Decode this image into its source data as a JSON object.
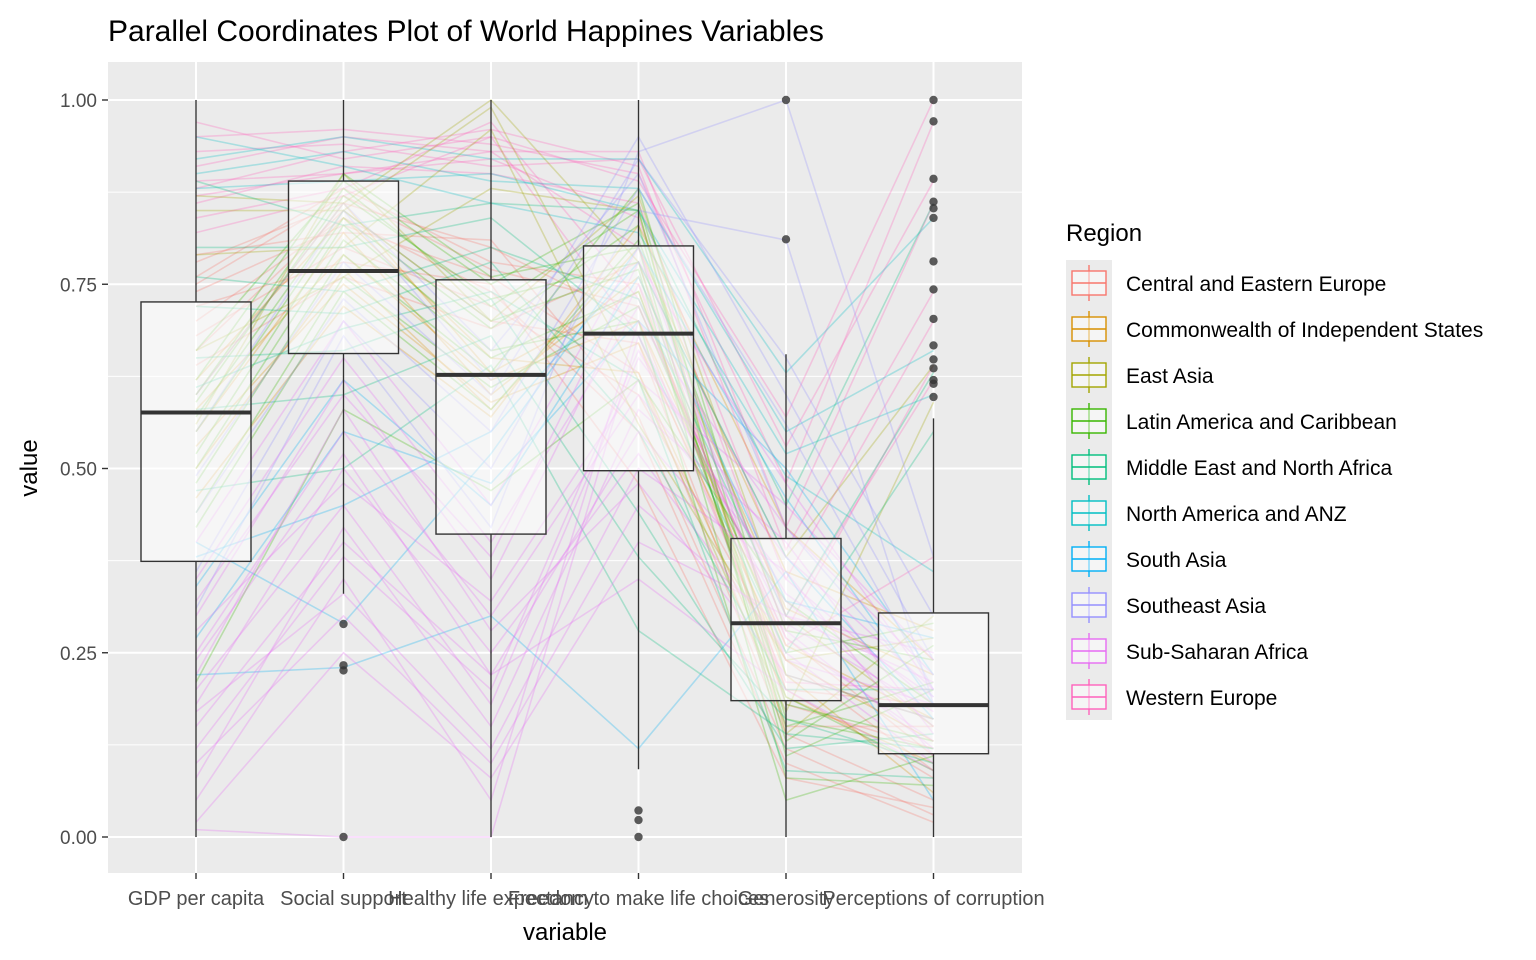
{
  "chart_data": {
    "type": "parallel-coordinates-boxplot",
    "title": "Parallel Coordinates Plot of World Happines Variables",
    "xlabel": "variable",
    "ylabel": "value",
    "ylim": [
      -0.05,
      1.05
    ],
    "y_ticks": [
      {
        "value": 0.0,
        "label": "0.00"
      },
      {
        "value": 0.25,
        "label": "0.25"
      },
      {
        "value": 0.5,
        "label": "0.50"
      },
      {
        "value": 0.75,
        "label": "0.75"
      },
      {
        "value": 1.0,
        "label": "1.00"
      }
    ],
    "categories": [
      "GDP per capita",
      "Social support",
      "Healthy life expectancy",
      "Freedom to make life choices",
      "Generosity",
      "Perceptions of corruption"
    ],
    "grid": true,
    "background": "#ebebeb",
    "boxplots": [
      {
        "variable": "GDP per capita",
        "min": 0.0,
        "q1": 0.374,
        "median": 0.576,
        "q3": 0.726,
        "max": 1.0,
        "outliers": []
      },
      {
        "variable": "Social support",
        "min": 0.33,
        "q1": 0.656,
        "median": 0.768,
        "q3": 0.89,
        "max": 1.0,
        "outliers": [
          0.0,
          0.226,
          0.233,
          0.289
        ]
      },
      {
        "variable": "Healthy life expectancy",
        "min": 0.0,
        "q1": 0.411,
        "median": 0.627,
        "q3": 0.756,
        "max": 1.0,
        "outliers": []
      },
      {
        "variable": "Freedom to make life choices",
        "min": 0.092,
        "q1": 0.497,
        "median": 0.683,
        "q3": 0.802,
        "max": 1.0,
        "outliers": [
          0.0,
          0.023,
          0.036
        ]
      },
      {
        "variable": "Generosity",
        "min": 0.0,
        "q1": 0.185,
        "median": 0.29,
        "q3": 0.405,
        "max": 0.655,
        "outliers": [
          0.811,
          1.0
        ]
      },
      {
        "variable": "Perceptions of corruption",
        "min": 0.0,
        "q1": 0.113,
        "median": 0.179,
        "q3": 0.304,
        "max": 0.568,
        "outliers": [
          0.597,
          0.615,
          0.62,
          0.636,
          0.648,
          0.667,
          0.703,
          0.743,
          0.781,
          0.84,
          0.853,
          0.862,
          0.893,
          0.971,
          1.0
        ]
      }
    ],
    "legend": {
      "title": "Region",
      "position": "right",
      "items": [
        {
          "name": "Central and Eastern Europe",
          "color": "#F8766D"
        },
        {
          "name": "Commonwealth of Independent States",
          "color": "#D89000"
        },
        {
          "name": "East Asia",
          "color": "#A3A500"
        },
        {
          "name": "Latin America and Caribbean",
          "color": "#39B600"
        },
        {
          "name": "Middle East and North Africa",
          "color": "#00BF7D"
        },
        {
          "name": "North America and ANZ",
          "color": "#00BFC4"
        },
        {
          "name": "South Asia",
          "color": "#00B0F6"
        },
        {
          "name": "Southeast Asia",
          "color": "#9590FF"
        },
        {
          "name": "Sub-Saharan Africa",
          "color": "#E76BF3"
        },
        {
          "name": "Western Europe",
          "color": "#FF62BC"
        }
      ]
    },
    "series": [
      {
        "name": "Western Europe",
        "values": [
          0.91,
          0.95,
          0.93,
          0.93,
          0.42,
          0.86
        ]
      },
      {
        "name": "Western Europe",
        "values": [
          0.93,
          0.94,
          0.91,
          0.92,
          0.53,
          0.89
        ]
      },
      {
        "name": "Western Europe",
        "values": [
          0.95,
          0.96,
          0.94,
          0.9,
          0.48,
          0.97
        ]
      },
      {
        "name": "Western Europe",
        "values": [
          0.88,
          0.93,
          0.96,
          0.91,
          0.39,
          0.74
        ]
      },
      {
        "name": "Western Europe",
        "values": [
          0.97,
          0.92,
          0.95,
          0.89,
          0.57,
          1.0
        ]
      },
      {
        "name": "Western Europe",
        "values": [
          0.86,
          0.91,
          0.9,
          0.86,
          0.35,
          0.7
        ]
      },
      {
        "name": "Western Europe",
        "values": [
          0.89,
          0.9,
          0.92,
          0.84,
          0.3,
          0.62
        ]
      },
      {
        "name": "Western Europe",
        "values": [
          0.84,
          0.88,
          0.97,
          0.73,
          0.26,
          0.38
        ]
      },
      {
        "name": "Western Europe",
        "values": [
          0.82,
          0.87,
          0.95,
          0.68,
          0.21,
          0.2
        ]
      },
      {
        "name": "Western Europe",
        "values": [
          0.87,
          0.9,
          0.93,
          0.8,
          0.28,
          0.64
        ]
      },
      {
        "name": "North America and ANZ",
        "values": [
          0.92,
          0.95,
          0.92,
          0.92,
          0.63,
          0.84
        ]
      },
      {
        "name": "North America and ANZ",
        "values": [
          0.9,
          0.93,
          0.89,
          0.88,
          0.55,
          0.66
        ]
      },
      {
        "name": "North America and ANZ",
        "values": [
          0.95,
          0.91,
          0.86,
          0.82,
          0.49,
          0.36
        ]
      },
      {
        "name": "North America and ANZ",
        "values": [
          0.88,
          0.89,
          0.9,
          0.85,
          0.52,
          0.6
        ]
      },
      {
        "name": "Central and Eastern Europe",
        "values": [
          0.78,
          0.86,
          0.8,
          0.7,
          0.2,
          0.08
        ]
      },
      {
        "name": "Central and Eastern Europe",
        "values": [
          0.74,
          0.83,
          0.76,
          0.63,
          0.14,
          0.05
        ]
      },
      {
        "name": "Central and Eastern Europe",
        "values": [
          0.7,
          0.84,
          0.74,
          0.55,
          0.1,
          0.02
        ]
      },
      {
        "name": "Central and Eastern Europe",
        "values": [
          0.76,
          0.88,
          0.78,
          0.75,
          0.18,
          0.12
        ]
      },
      {
        "name": "Central and Eastern Europe",
        "values": [
          0.68,
          0.8,
          0.72,
          0.6,
          0.24,
          0.09
        ]
      },
      {
        "name": "Central and Eastern Europe",
        "values": [
          0.72,
          0.78,
          0.75,
          0.48,
          0.08,
          0.04
        ]
      },
      {
        "name": "Central and Eastern Europe",
        "values": [
          0.66,
          0.85,
          0.7,
          0.67,
          0.15,
          0.15
        ]
      },
      {
        "name": "Central and Eastern Europe",
        "values": [
          0.79,
          0.82,
          0.81,
          0.57,
          0.12,
          0.03
        ]
      },
      {
        "name": "Central and Eastern Europe",
        "values": [
          0.64,
          0.76,
          0.69,
          0.78,
          0.2,
          0.18
        ]
      },
      {
        "name": "Central and Eastern Europe",
        "values": [
          0.75,
          0.87,
          0.77,
          0.72,
          0.27,
          0.11
        ]
      },
      {
        "name": "Commonwealth of Independent States",
        "values": [
          0.58,
          0.79,
          0.62,
          0.7,
          0.26,
          0.16
        ]
      },
      {
        "name": "Commonwealth of Independent States",
        "values": [
          0.55,
          0.82,
          0.6,
          0.76,
          0.31,
          0.22
        ]
      },
      {
        "name": "Commonwealth of Independent States",
        "values": [
          0.62,
          0.84,
          0.65,
          0.63,
          0.19,
          0.1
        ]
      },
      {
        "name": "Commonwealth of Independent States",
        "values": [
          0.5,
          0.77,
          0.58,
          0.8,
          0.36,
          0.28
        ]
      },
      {
        "name": "Commonwealth of Independent States",
        "values": [
          0.6,
          0.86,
          0.63,
          0.74,
          0.22,
          0.06
        ]
      },
      {
        "name": "Commonwealth of Independent States",
        "values": [
          0.46,
          0.72,
          0.57,
          0.83,
          0.42,
          0.24
        ]
      },
      {
        "name": "Commonwealth of Independent States",
        "values": [
          0.53,
          0.75,
          0.59,
          0.67,
          0.24,
          0.13
        ]
      },
      {
        "name": "East Asia",
        "values": [
          0.85,
          0.85,
          0.99,
          0.62,
          0.17,
          0.59
        ]
      },
      {
        "name": "East Asia",
        "values": [
          0.79,
          0.8,
          0.96,
          0.56,
          0.24,
          0.27
        ]
      },
      {
        "name": "East Asia",
        "values": [
          0.66,
          0.76,
          0.88,
          0.85,
          0.14,
          0.3
        ]
      },
      {
        "name": "East Asia",
        "values": [
          0.87,
          0.86,
          1.0,
          0.78,
          0.38,
          0.64
        ]
      },
      {
        "name": "East Asia",
        "values": [
          0.56,
          0.9,
          0.7,
          0.87,
          0.3,
          0.15
        ]
      },
      {
        "name": "Latin America and Caribbean",
        "values": [
          0.55,
          0.84,
          0.69,
          0.83,
          0.16,
          0.12
        ]
      },
      {
        "name": "Latin America and Caribbean",
        "values": [
          0.6,
          0.88,
          0.72,
          0.85,
          0.11,
          0.2
        ]
      },
      {
        "name": "Latin America and Caribbean",
        "values": [
          0.5,
          0.81,
          0.65,
          0.74,
          0.19,
          0.09
        ]
      },
      {
        "name": "Latin America and Caribbean",
        "values": [
          0.62,
          0.9,
          0.76,
          0.8,
          0.13,
          0.26
        ]
      },
      {
        "name": "Latin America and Caribbean",
        "values": [
          0.48,
          0.79,
          0.63,
          0.88,
          0.22,
          0.16
        ]
      },
      {
        "name": "Latin America and Caribbean",
        "values": [
          0.57,
          0.85,
          0.7,
          0.77,
          0.08,
          0.07
        ]
      },
      {
        "name": "Latin America and Caribbean",
        "values": [
          0.44,
          0.76,
          0.61,
          0.72,
          0.25,
          0.29
        ]
      },
      {
        "name": "Latin America and Caribbean",
        "values": [
          0.66,
          0.89,
          0.75,
          0.86,
          0.18,
          0.13
        ]
      },
      {
        "name": "Latin America and Caribbean",
        "values": [
          0.52,
          0.83,
          0.66,
          0.7,
          0.05,
          0.11
        ]
      },
      {
        "name": "Latin America and Caribbean",
        "values": [
          0.42,
          0.74,
          0.58,
          0.81,
          0.28,
          0.24
        ]
      },
      {
        "name": "Latin America and Caribbean",
        "values": [
          0.59,
          0.87,
          0.73,
          0.78,
          0.15,
          0.21
        ]
      },
      {
        "name": "Latin America and Caribbean",
        "values": [
          0.21,
          0.58,
          0.47,
          0.62,
          0.32,
          0.18
        ]
      },
      {
        "name": "Middle East and North Africa",
        "values": [
          0.8,
          0.8,
          0.84,
          0.68,
          0.25,
          0.55
        ]
      },
      {
        "name": "Middle East and North Africa",
        "values": [
          0.72,
          0.71,
          0.78,
          0.55,
          0.2,
          0.2
        ]
      },
      {
        "name": "Middle East and North Africa",
        "values": [
          0.65,
          0.66,
          0.73,
          0.44,
          0.12,
          0.14
        ]
      },
      {
        "name": "Middle East and North Africa",
        "values": [
          0.89,
          0.83,
          0.86,
          0.85,
          0.45,
          0.86
        ]
      },
      {
        "name": "Middle East and North Africa",
        "values": [
          0.58,
          0.6,
          0.68,
          0.38,
          0.16,
          0.1
        ]
      },
      {
        "name": "Middle East and North Africa",
        "values": [
          0.61,
          0.69,
          0.74,
          0.62,
          0.09,
          0.08
        ]
      },
      {
        "name": "Middle East and North Africa",
        "values": [
          0.47,
          0.5,
          0.64,
          0.28,
          0.14,
          0.12
        ]
      },
      {
        "name": "Middle East and North Africa",
        "values": [
          0.76,
          0.74,
          0.8,
          0.73,
          0.3,
          0.63
        ]
      },
      {
        "name": "South Asia",
        "values": [
          0.38,
          0.45,
          0.55,
          0.78,
          0.38,
          0.16
        ]
      },
      {
        "name": "South Asia",
        "values": [
          0.4,
          0.29,
          0.52,
          0.8,
          0.46,
          0.18
        ]
      },
      {
        "name": "South Asia",
        "values": [
          0.27,
          0.55,
          0.48,
          0.7,
          0.5,
          0.22
        ]
      },
      {
        "name": "South Asia",
        "values": [
          0.22,
          0.23,
          0.3,
          0.12,
          0.36,
          0.05
        ]
      },
      {
        "name": "South Asia",
        "values": [
          0.34,
          0.62,
          0.45,
          0.76,
          0.32,
          0.27
        ]
      },
      {
        "name": "Southeast Asia",
        "values": [
          0.49,
          0.78,
          0.6,
          0.92,
          0.65,
          0.3
        ]
      },
      {
        "name": "Southeast Asia",
        "values": [
          0.55,
          0.85,
          0.62,
          0.95,
          0.6,
          0.24
        ]
      },
      {
        "name": "Southeast Asia",
        "values": [
          0.44,
          0.73,
          0.55,
          0.88,
          0.56,
          0.2
        ]
      },
      {
        "name": "Southeast Asia",
        "values": [
          0.31,
          0.68,
          0.42,
          0.93,
          1.0,
          0.38
        ]
      },
      {
        "name": "Southeast Asia",
        "values": [
          0.6,
          0.86,
          0.66,
          0.9,
          0.42,
          0.19
        ]
      },
      {
        "name": "Southeast Asia",
        "values": [
          0.36,
          0.7,
          0.5,
          0.85,
          0.81,
          0.18
        ]
      },
      {
        "name": "Sub-Saharan Africa",
        "values": [
          0.15,
          0.4,
          0.22,
          0.55,
          0.32,
          0.15
        ]
      },
      {
        "name": "Sub-Saharan Africa",
        "values": [
          0.2,
          0.45,
          0.18,
          0.65,
          0.38,
          0.2
        ]
      },
      {
        "name": "Sub-Saharan Africa",
        "values": [
          0.1,
          0.3,
          0.1,
          0.45,
          0.28,
          0.12
        ]
      },
      {
        "name": "Sub-Saharan Africa",
        "values": [
          0.25,
          0.55,
          0.3,
          0.6,
          0.35,
          0.18
        ]
      },
      {
        "name": "Sub-Saharan Africa",
        "values": [
          0.05,
          0.35,
          0.05,
          0.7,
          0.42,
          0.22
        ]
      },
      {
        "name": "Sub-Saharan Africa",
        "values": [
          0.18,
          0.5,
          0.25,
          0.52,
          0.25,
          0.1
        ]
      },
      {
        "name": "Sub-Saharan Africa",
        "values": [
          0.3,
          0.62,
          0.35,
          0.75,
          0.3,
          0.25
        ]
      },
      {
        "name": "Sub-Saharan Africa",
        "values": [
          0.08,
          0.42,
          0.15,
          0.58,
          0.4,
          0.14
        ]
      },
      {
        "name": "Sub-Saharan Africa",
        "values": [
          0.22,
          0.58,
          0.28,
          0.48,
          0.22,
          0.16
        ]
      },
      {
        "name": "Sub-Saharan Africa",
        "values": [
          0.12,
          0.38,
          0.2,
          0.66,
          0.33,
          0.19
        ]
      },
      {
        "name": "Sub-Saharan Africa",
        "values": [
          0.35,
          0.65,
          0.4,
          0.72,
          0.27,
          0.13
        ]
      },
      {
        "name": "Sub-Saharan Africa",
        "values": [
          0.02,
          0.25,
          0.08,
          0.4,
          0.3,
          0.21
        ]
      },
      {
        "name": "Sub-Saharan Africa",
        "values": [
          0.28,
          0.48,
          0.32,
          0.62,
          0.45,
          0.24
        ]
      },
      {
        "name": "Sub-Saharan Africa",
        "values": [
          0.4,
          0.7,
          0.45,
          0.8,
          0.24,
          0.18
        ]
      },
      {
        "name": "Sub-Saharan Africa",
        "values": [
          0.17,
          0.33,
          0.12,
          0.5,
          0.36,
          0.11
        ]
      },
      {
        "name": "Sub-Saharan Africa",
        "values": [
          0.01,
          0.0,
          0.0,
          0.68,
          0.29,
          0.17
        ]
      },
      {
        "name": "Sub-Saharan Africa",
        "values": [
          0.24,
          0.52,
          0.22,
          0.35,
          0.2,
          0.09
        ]
      },
      {
        "name": "Sub-Saharan Africa",
        "values": [
          0.32,
          0.6,
          0.38,
          0.78,
          0.48,
          0.2
        ]
      }
    ]
  }
}
